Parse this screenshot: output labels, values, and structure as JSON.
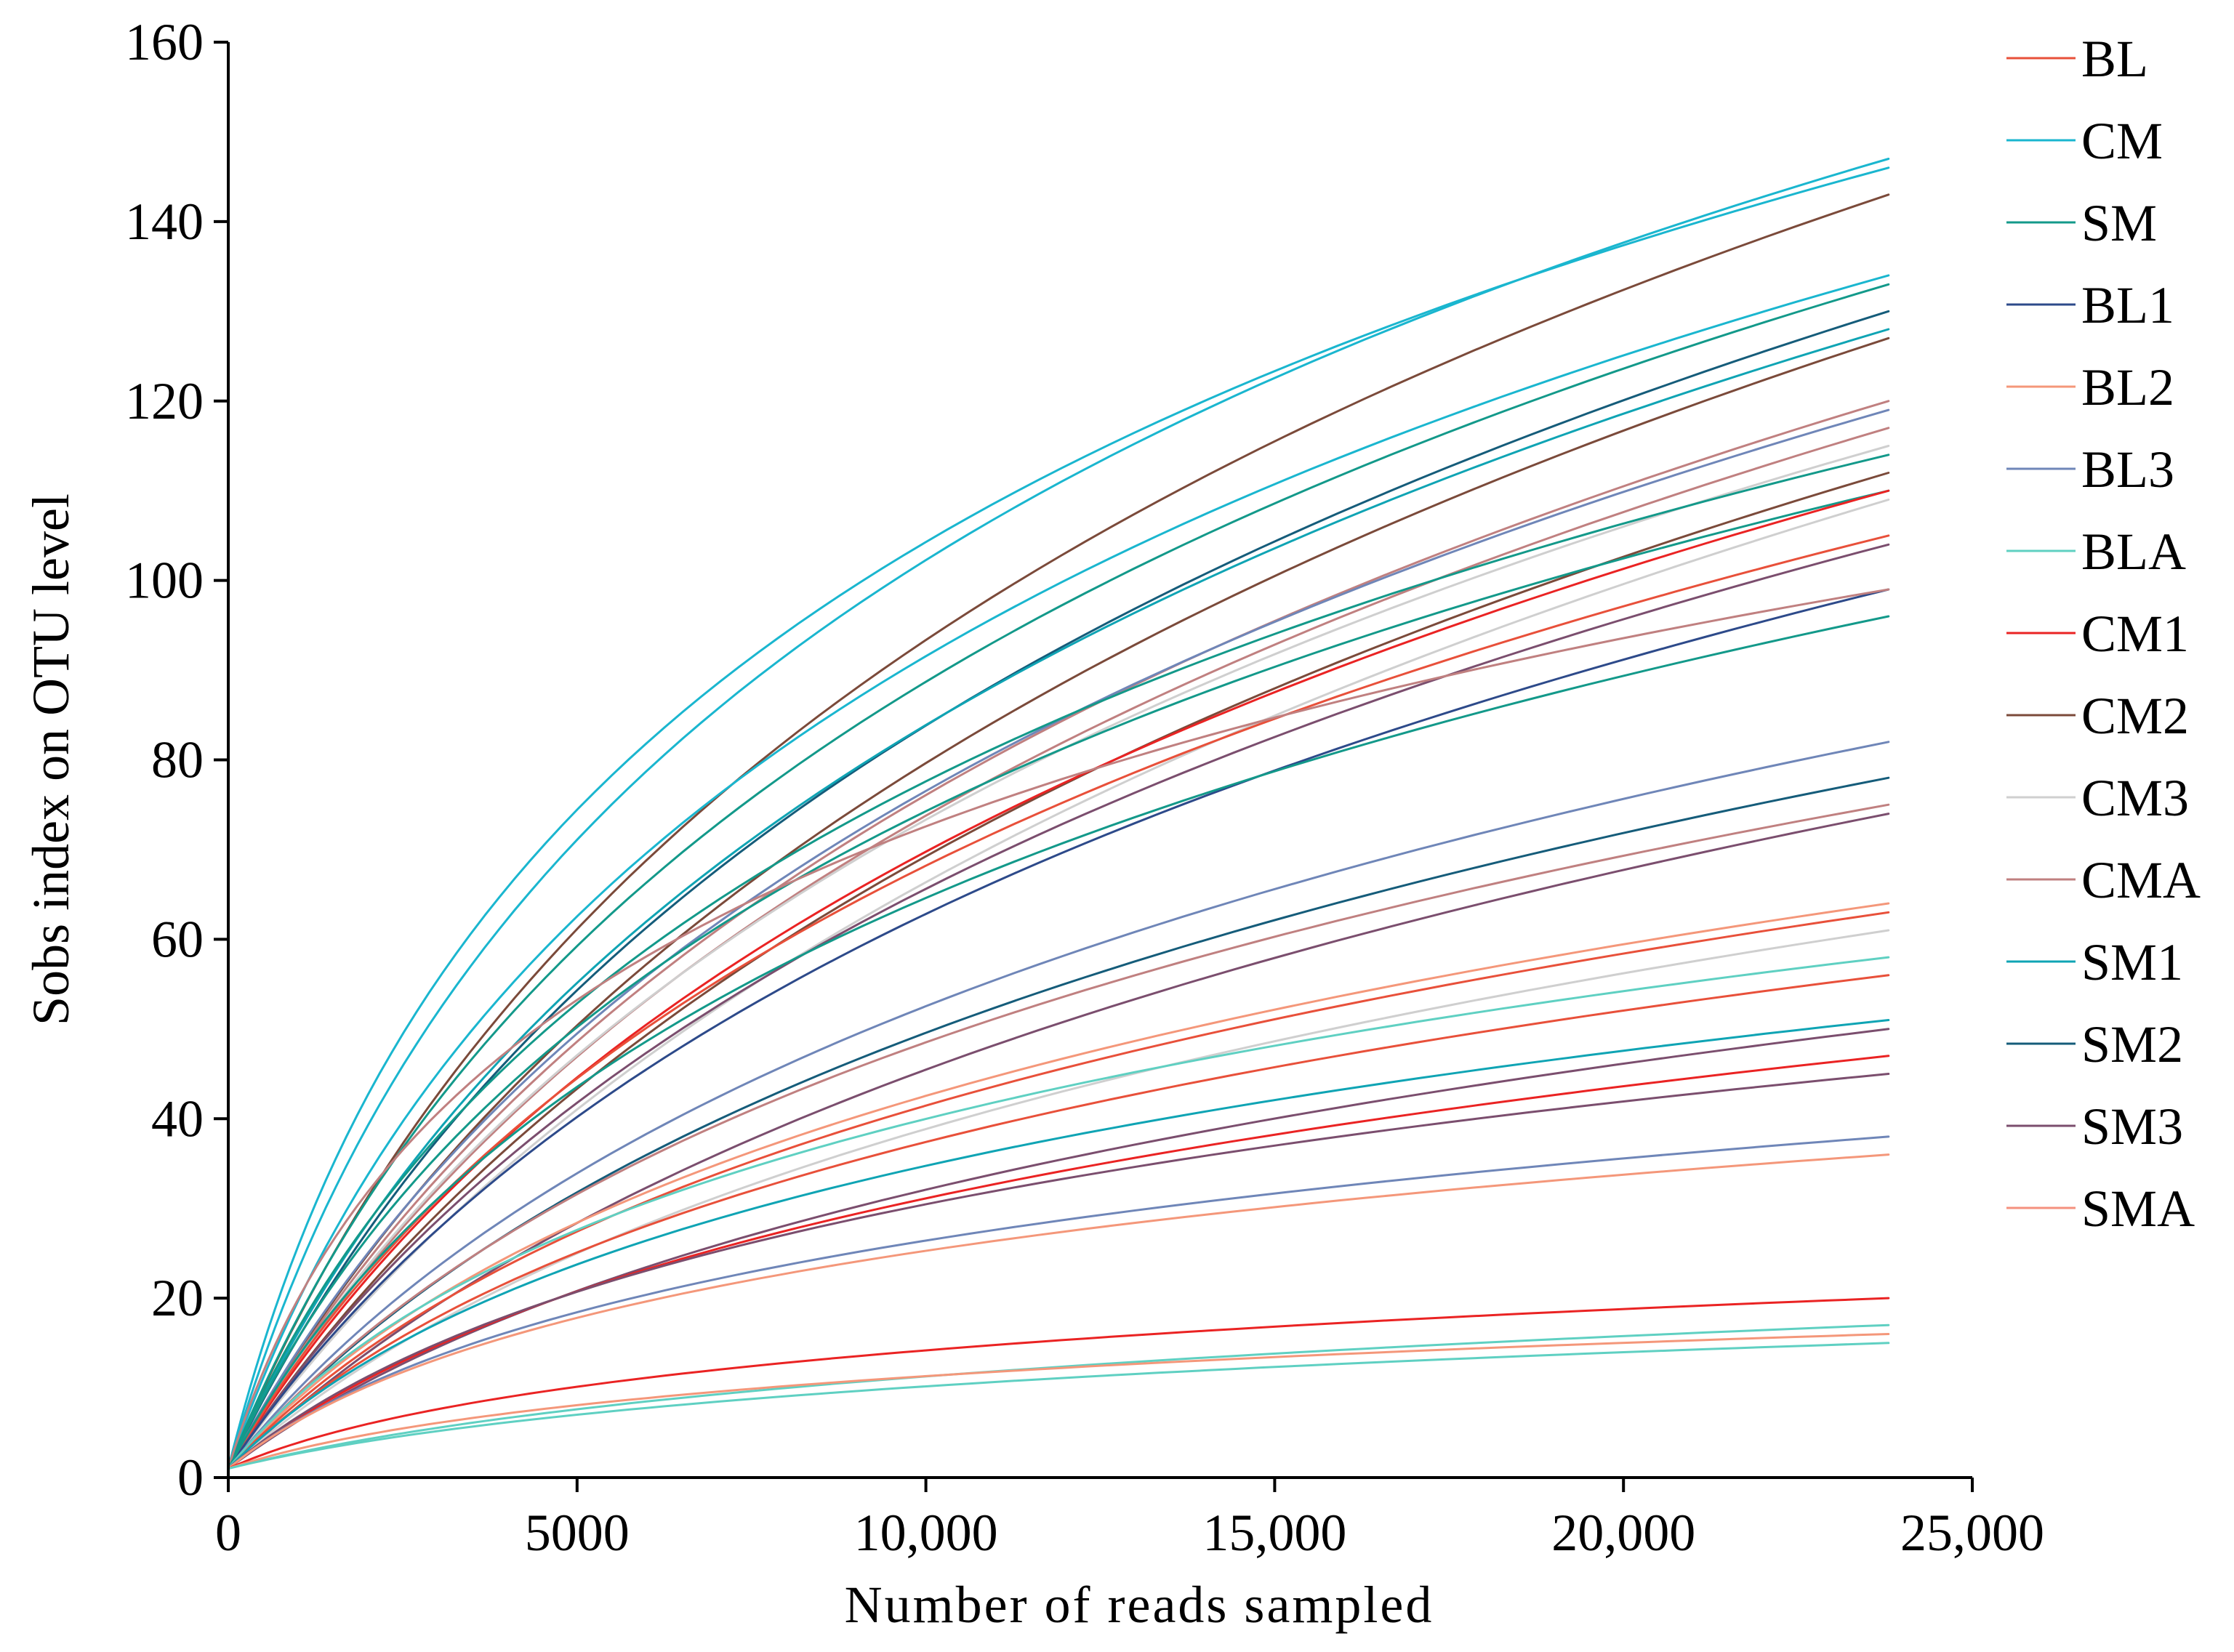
{
  "chart_data": {
    "type": "line",
    "title": "",
    "xlabel": "Number of reads sampled",
    "ylabel": "Sobs index on OTU level",
    "xlim": [
      0,
      25000
    ],
    "ylim": [
      0,
      160
    ],
    "x_ticks": [
      0,
      5000,
      10000,
      15000,
      20000,
      25000
    ],
    "x_tick_labels": [
      "0",
      "5000",
      "10,000",
      "15,000",
      "20,000",
      "25,000"
    ],
    "y_ticks": [
      0,
      20,
      40,
      60,
      80,
      100,
      120,
      140,
      160
    ],
    "y_tick_labels": [
      "0",
      "20",
      "40",
      "60",
      "80",
      "100",
      "120",
      "140",
      "160"
    ],
    "grid": false,
    "legend_position": "right",
    "legend": [
      {
        "name": "BL",
        "color": "#e8503a"
      },
      {
        "name": "CM",
        "color": "#1ab6cf"
      },
      {
        "name": "SM",
        "color": "#13998a"
      },
      {
        "name": "BL1",
        "color": "#2d4a8a"
      },
      {
        "name": "BL2",
        "color": "#f4977a"
      },
      {
        "name": "BL3",
        "color": "#6f86b8"
      },
      {
        "name": "BLA",
        "color": "#5fd0c2"
      },
      {
        "name": "CM1",
        "color": "#ea2323"
      },
      {
        "name": "CM2",
        "color": "#7b4a3a"
      },
      {
        "name": "CM3",
        "color": "#cfcfcf"
      },
      {
        "name": "CMA",
        "color": "#c08080"
      },
      {
        "name": "SM1",
        "color": "#0fa4b4"
      },
      {
        "name": "SM2",
        "color": "#155c7a"
      },
      {
        "name": "SM3",
        "color": "#7b4e6e"
      },
      {
        "name": "SMA",
        "color": "#f4917e"
      }
    ],
    "x_end": 23800,
    "curves": [
      {
        "color": "#1ab6cf",
        "final": 147,
        "k": 2200
      },
      {
        "color": "#1ab6cf",
        "final": 146,
        "k": 1700
      },
      {
        "color": "#7b4a3a",
        "final": 143,
        "k": 3800
      },
      {
        "color": "#1ab6cf",
        "final": 134,
        "k": 2600
      },
      {
        "color": "#13998a",
        "final": 133,
        "k": 3200
      },
      {
        "color": "#155c7a",
        "final": 130,
        "k": 4200
      },
      {
        "color": "#0fa4b4",
        "final": 128,
        "k": 3700
      },
      {
        "color": "#7b4a3a",
        "final": 127,
        "k": 5200
      },
      {
        "color": "#c08080",
        "final": 120,
        "k": 4800
      },
      {
        "color": "#6f86b8",
        "final": 119,
        "k": 4300
      },
      {
        "color": "#c08080",
        "final": 117,
        "k": 5000
      },
      {
        "color": "#cfcfcf",
        "final": 115,
        "k": 4600
      },
      {
        "color": "#13998a",
        "final": 114,
        "k": 2700
      },
      {
        "color": "#7b4a3a",
        "final": 112,
        "k": 5800
      },
      {
        "color": "#13998a",
        "final": 110,
        "k": 2900
      },
      {
        "color": "#ea2323",
        "final": 110,
        "k": 4800
      },
      {
        "color": "#cfcfcf",
        "final": 109,
        "k": 6500
      },
      {
        "color": "#e8503a",
        "final": 105,
        "k": 4000
      },
      {
        "color": "#7b4e6e",
        "final": 104,
        "k": 5000
      },
      {
        "color": "#2d4a8a",
        "final": 99,
        "k": 4800
      },
      {
        "color": "#c08080",
        "final": 99,
        "k": 1300
      },
      {
        "color": "#13998a",
        "final": 96,
        "k": 3000
      },
      {
        "color": "#6f86b8",
        "final": 82,
        "k": 4500
      },
      {
        "color": "#155c7a",
        "final": 78,
        "k": 4800
      },
      {
        "color": "#c08080",
        "final": 75,
        "k": 4200
      },
      {
        "color": "#7b4e6e",
        "final": 74,
        "k": 6200
      },
      {
        "color": "#f4977a",
        "final": 64,
        "k": 3400
      },
      {
        "color": "#e8503a",
        "final": 63,
        "k": 3700
      },
      {
        "color": "#cfcfcf",
        "final": 61,
        "k": 4800
      },
      {
        "color": "#5fd0c2",
        "final": 58,
        "k": 2500
      },
      {
        "color": "#e8503a",
        "final": 56,
        "k": 3300
      },
      {
        "color": "#0fa4b4",
        "final": 51,
        "k": 2800
      },
      {
        "color": "#7b4e6e",
        "final": 50,
        "k": 4600
      },
      {
        "color": "#ea2323",
        "final": 47,
        "k": 3600
      },
      {
        "color": "#7b4e6e",
        "final": 45,
        "k": 3000
      },
      {
        "color": "#6f86b8",
        "final": 38,
        "k": 2400
      },
      {
        "color": "#f4977a",
        "final": 36,
        "k": 2200
      },
      {
        "color": "#ea2323",
        "final": 20,
        "k": 2200
      },
      {
        "color": "#5fd0c2",
        "final": 17,
        "k": 4200
      },
      {
        "color": "#f4977a",
        "final": 16,
        "k": 2400
      },
      {
        "color": "#5fd0c2",
        "final": 15,
        "k": 3600
      }
    ]
  }
}
